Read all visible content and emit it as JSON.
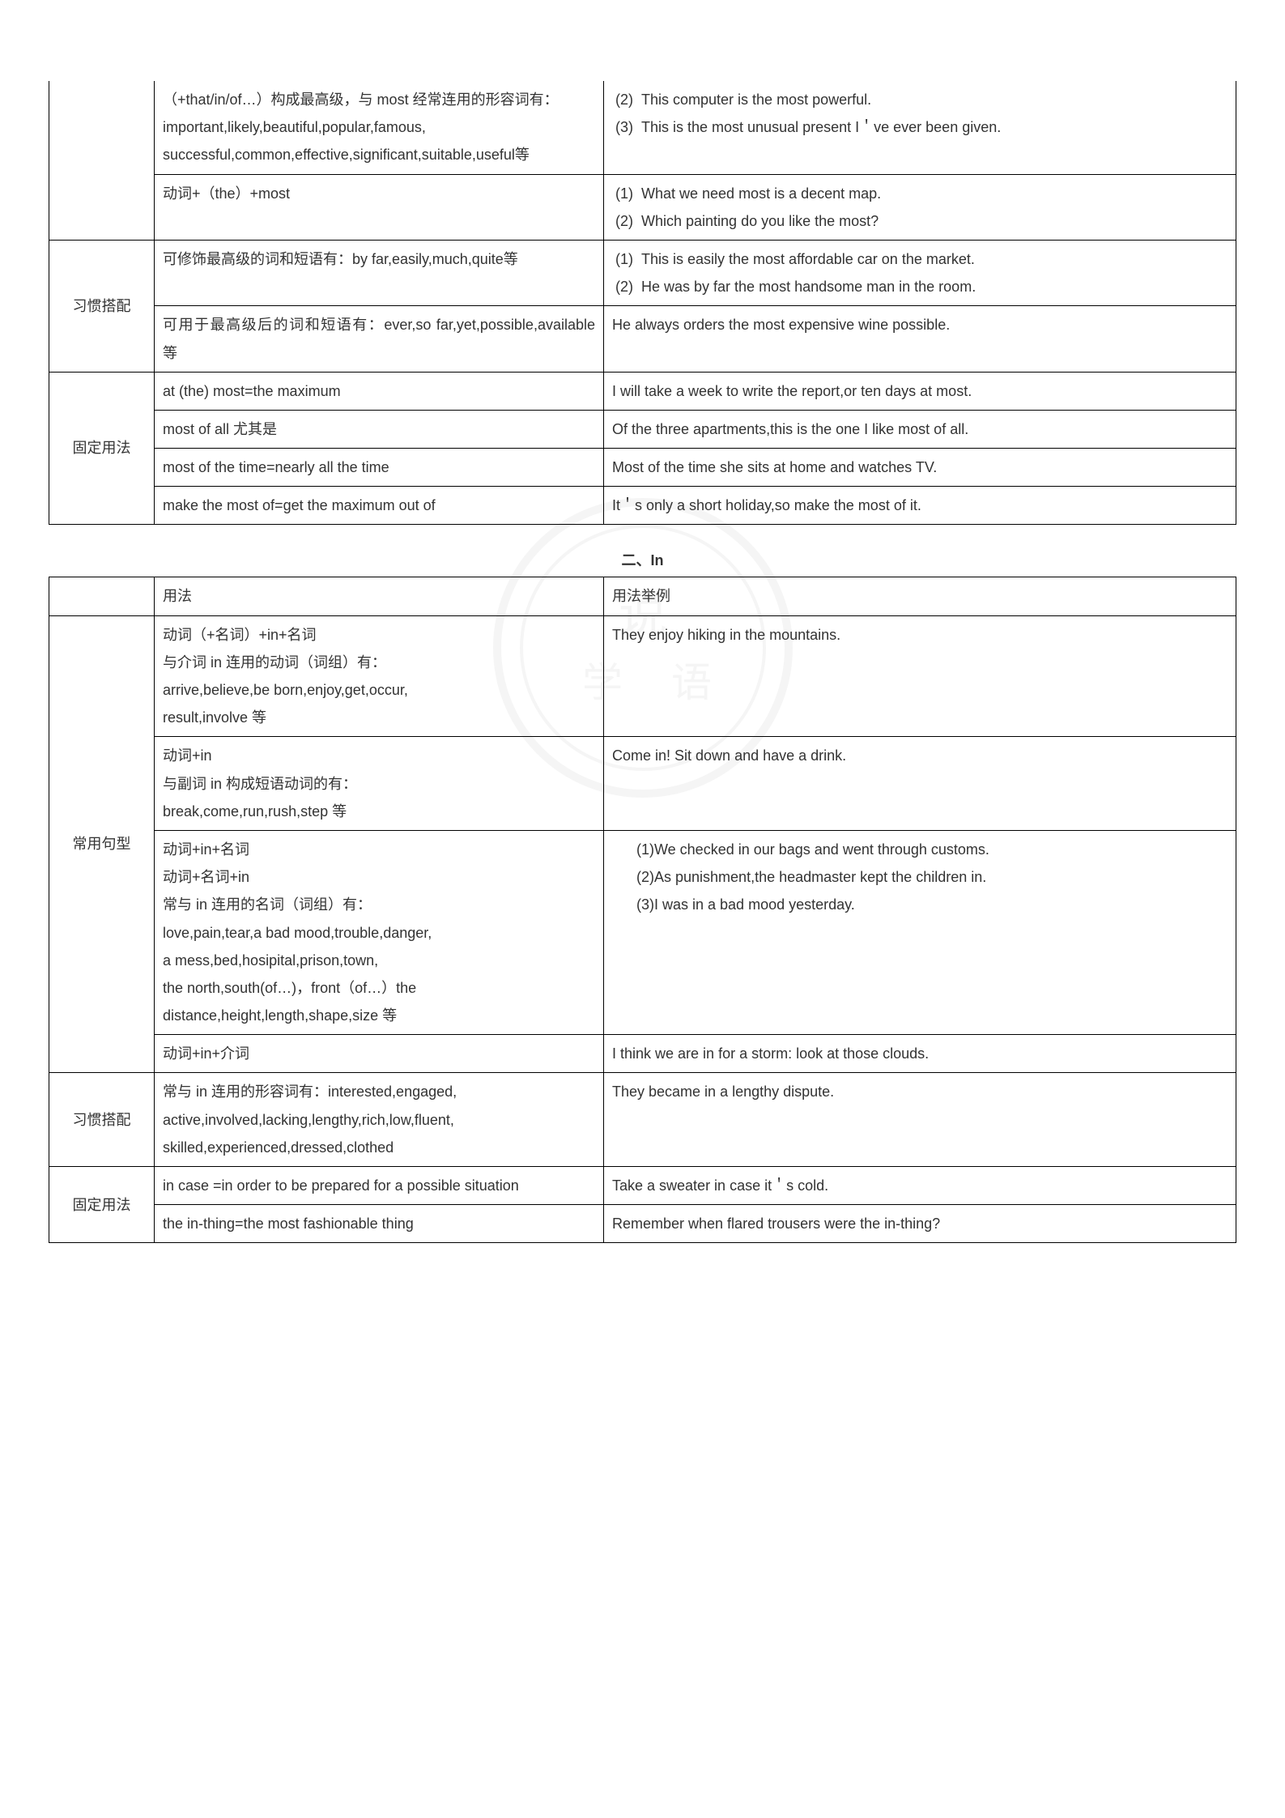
{
  "table1": {
    "rows": [
      {
        "label": "",
        "usage": "（+that/in/of…）构成最高级，与 most 经常连用的形容词有：important,likely,beautiful,popular,famous, successful,common,effective,significant,suitable,useful等",
        "examples": [
          {
            "n": "(2)",
            "t": "This computer is the most powerful."
          },
          {
            "n": "(3)",
            "t": "This is the most unusual present I＇ve ever been given."
          }
        ],
        "label_rowspan": 2,
        "no_top": true
      },
      {
        "usage": "动词+（the）+most",
        "examples": [
          {
            "n": "(1)",
            "t": "What we need most is a decent map."
          },
          {
            "n": "(2)",
            "t": "Which painting do you like the most?"
          }
        ]
      },
      {
        "label": "习惯搭配",
        "usage": "可修饰最高级的词和短语有：by far,easily,much,quite等",
        "examples": [
          {
            "n": "(1)",
            "t": "This is easily the most affordable car on the market."
          },
          {
            "n": "(2)",
            "t": "He was by far the most handsome man in the room."
          }
        ],
        "label_rowspan": 2
      },
      {
        "usage": "可用于最高级后的词和短语有：ever,so far,yet,possible,available 等",
        "example_plain": "He always orders the most expensive wine possible.",
        "usage_justify": true
      },
      {
        "label": "固定用法",
        "usage": "at (the) most=the maximum",
        "example_plain": "I will take a week to write the report,or ten days at most.",
        "label_rowspan": 4
      },
      {
        "usage": "most of all 尤其是",
        "example_plain": "Of the three apartments,this is the one I like most of all.",
        "example_justify": true
      },
      {
        "usage": "most of the time=nearly all the time",
        "example_plain": "Most of the time she sits at home and watches TV."
      },
      {
        "usage": "make the most of=get the maximum out of",
        "example_plain": "It＇s only a short holiday,so make the most of it."
      }
    ]
  },
  "section2_title": "二、In",
  "table2": {
    "header": {
      "label": "",
      "usage": "用法",
      "example": "用法举例"
    },
    "rows": [
      {
        "label": "常用句型",
        "usage_lines": [
          "动词（+名词）+in+名词",
          "与介词 in 连用的动词（词组）有：",
          "arrive,believe,be born,enjoy,get,occur,",
          "result,involve 等"
        ],
        "example_plain": "They enjoy hiking in the mountains.",
        "label_rowspan": 4
      },
      {
        "usage_lines": [
          "动词+in",
          "与副词 in 构成短语动词的有：",
          "break,come,run,rush,step 等"
        ],
        "example_plain": "Come in! Sit down and have a drink."
      },
      {
        "usage_lines": [
          "动词+in+名词",
          "动词+名词+in",
          "常与 in 连用的名词（词组）有：",
          "love,pain,tear,a bad mood,trouble,danger,",
          "a mess,bed,hosipital,prison,town,",
          "the north,south(of…)，front（of…）the",
          "distance,height,length,shape,size 等"
        ],
        "examples": [
          {
            "n": "(1)",
            "t": "We checked in our bags and went through customs."
          },
          {
            "n": "(2)",
            "t": "As punishment,the headmaster kept the children in."
          },
          {
            "n": "(3)",
            "t": "I was in a bad mood yesterday."
          }
        ],
        "example_indent": true,
        "example_justify": true
      },
      {
        "usage": "动词+in+介词",
        "example_plain": "I think we are in for a storm: look at those clouds."
      },
      {
        "label": "习惯搭配",
        "usage_lines": [
          "常与 in 连用的形容词有：interested,engaged,",
          "active,involved,lacking,lengthy,rich,low,fluent,",
          "skilled,experienced,dressed,clothed"
        ],
        "example_plain": "They became in a lengthy dispute.",
        "label_rowspan": 1,
        "usage_justify_first": true
      },
      {
        "label": "固定用法",
        "usage": "in case =in order to be prepared for a possible situation",
        "example_plain": "Take a sweater in case it＇s cold.",
        "label_rowspan": 2
      },
      {
        "usage": "the in-thing=the most fashionable thing",
        "example_plain": "Remember when flared trousers were the in-thing?"
      }
    ]
  }
}
